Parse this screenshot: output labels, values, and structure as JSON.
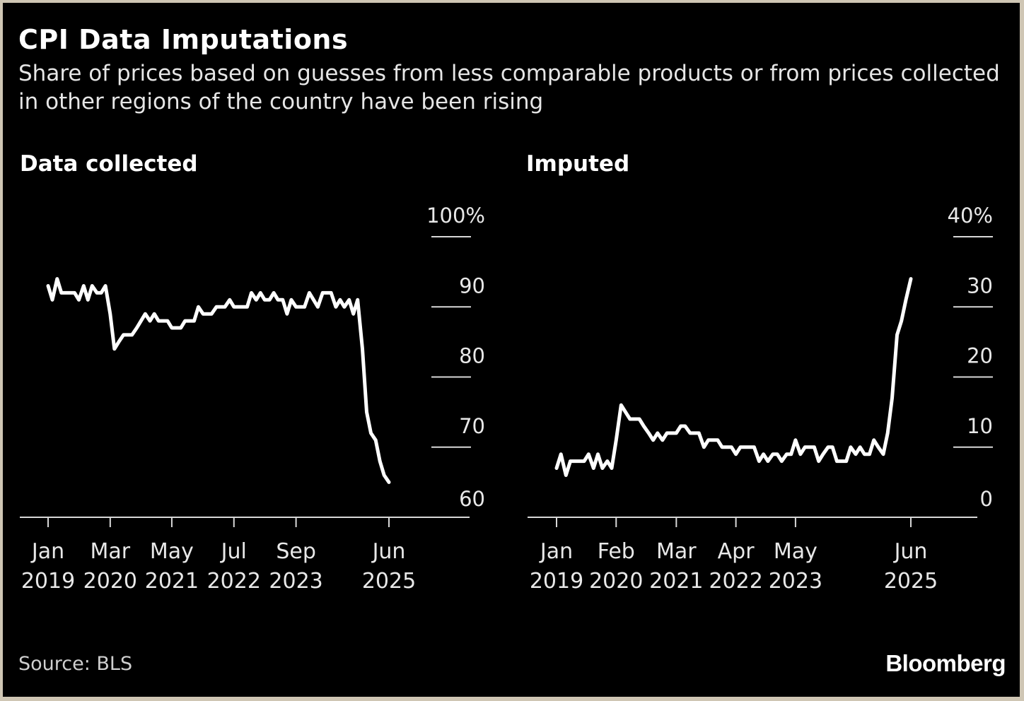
{
  "title": "CPI Data Imputations",
  "subtitle": "Share of prices based on guesses from less comparable products or from prices collected in other regions of the country have been rising",
  "footer": {
    "source": "Source: BLS",
    "brand": "Bloomberg"
  },
  "colors": {
    "background": "#000000",
    "line": "#ffffff",
    "text": "#ffffff"
  },
  "chart_data": [
    {
      "type": "line",
      "title": "Data collected",
      "ylim": [
        60,
        100
      ],
      "ytick_labels": [
        "100%",
        "90",
        "80",
        "70",
        "60"
      ],
      "yticks": [
        100,
        90,
        80,
        70,
        60
      ],
      "x_tick_labels": [
        {
          "month": "Jan",
          "year": "2019",
          "x": 2019.0
        },
        {
          "month": "Mar",
          "year": "2020",
          "x": 2020.17
        },
        {
          "month": "May",
          "year": "2021",
          "x": 2021.33
        },
        {
          "month": "Jul",
          "year": "2022",
          "x": 2022.5
        },
        {
          "month": "Sep",
          "year": "2023",
          "x": 2023.67
        },
        {
          "month": "Jun",
          "year": "2025",
          "x": 2025.42
        }
      ],
      "xlim": [
        2018.5,
        2026.0
      ],
      "x": [
        2019.0,
        2019.08,
        2019.17,
        2019.25,
        2019.33,
        2019.42,
        2019.5,
        2019.58,
        2019.67,
        2019.75,
        2019.83,
        2019.92,
        2020.0,
        2020.08,
        2020.17,
        2020.25,
        2020.33,
        2020.42,
        2020.5,
        2020.58,
        2020.67,
        2020.75,
        2020.83,
        2020.92,
        2021.0,
        2021.08,
        2021.17,
        2021.25,
        2021.33,
        2021.42,
        2021.5,
        2021.58,
        2021.67,
        2021.75,
        2021.83,
        2021.92,
        2022.0,
        2022.08,
        2022.17,
        2022.25,
        2022.33,
        2022.42,
        2022.5,
        2022.58,
        2022.67,
        2022.75,
        2022.83,
        2022.92,
        2023.0,
        2023.08,
        2023.17,
        2023.25,
        2023.33,
        2023.42,
        2023.5,
        2023.58,
        2023.67,
        2023.75,
        2023.83,
        2023.92,
        2024.0,
        2024.08,
        2024.17,
        2024.25,
        2024.33,
        2024.42,
        2024.5,
        2024.58,
        2024.67,
        2024.75,
        2024.83,
        2024.92,
        2025.0,
        2025.08,
        2025.17,
        2025.25,
        2025.33,
        2025.42
      ],
      "values": [
        93,
        91,
        94,
        92,
        92,
        92,
        92,
        91,
        93,
        91,
        93,
        92,
        92,
        93,
        89,
        84,
        85,
        86,
        86,
        86,
        87,
        88,
        89,
        88,
        89,
        88,
        88,
        88,
        87,
        87,
        87,
        88,
        88,
        88,
        90,
        89,
        89,
        89,
        90,
        90,
        90,
        91,
        90,
        90,
        90,
        90,
        92,
        91,
        92,
        91,
        91,
        92,
        91,
        91,
        89,
        91,
        90,
        90,
        90,
        92,
        91,
        90,
        92,
        92,
        92,
        90,
        91,
        90,
        91,
        89,
        91,
        84,
        75,
        72,
        71,
        68,
        66,
        65
      ]
    },
    {
      "type": "line",
      "title": "Imputed",
      "ylim": [
        0,
        40
      ],
      "ytick_labels": [
        "40%",
        "30",
        "20",
        "10",
        "0"
      ],
      "yticks": [
        40,
        30,
        20,
        10,
        0
      ],
      "x_tick_labels": [
        {
          "month": "Jan",
          "year": "2019",
          "x": 2019.0
        },
        {
          "month": "Feb",
          "year": "2020",
          "x": 2020.08
        },
        {
          "month": "Mar",
          "year": "2021",
          "x": 2021.17
        },
        {
          "month": "Apr",
          "year": "2022",
          "x": 2022.25
        },
        {
          "month": "May",
          "year": "2023",
          "x": 2023.33
        },
        {
          "month": "Jun",
          "year": "2025",
          "x": 2025.42
        }
      ],
      "xlim": [
        2018.5,
        2026.0
      ],
      "x": [
        2019.0,
        2019.08,
        2019.17,
        2019.25,
        2019.33,
        2019.42,
        2019.5,
        2019.58,
        2019.67,
        2019.75,
        2019.83,
        2019.92,
        2020.0,
        2020.08,
        2020.17,
        2020.25,
        2020.33,
        2020.42,
        2020.5,
        2020.58,
        2020.67,
        2020.75,
        2020.83,
        2020.92,
        2021.0,
        2021.08,
        2021.17,
        2021.25,
        2021.33,
        2021.42,
        2021.5,
        2021.58,
        2021.67,
        2021.75,
        2021.83,
        2021.92,
        2022.0,
        2022.08,
        2022.17,
        2022.25,
        2022.33,
        2022.42,
        2022.5,
        2022.58,
        2022.67,
        2022.75,
        2022.83,
        2022.92,
        2023.0,
        2023.08,
        2023.17,
        2023.25,
        2023.33,
        2023.42,
        2023.5,
        2023.58,
        2023.67,
        2023.75,
        2023.83,
        2023.92,
        2024.0,
        2024.08,
        2024.17,
        2024.25,
        2024.33,
        2024.42,
        2024.5,
        2024.58,
        2024.67,
        2024.75,
        2024.83,
        2024.92,
        2025.0,
        2025.08,
        2025.17,
        2025.25,
        2025.33,
        2025.42
      ],
      "values": [
        7,
        9,
        6,
        8,
        8,
        8,
        8,
        9,
        7,
        9,
        7,
        8,
        7,
        11,
        16,
        15,
        14,
        14,
        14,
        13,
        12,
        11,
        12,
        11,
        12,
        12,
        12,
        13,
        13,
        12,
        12,
        12,
        10,
        11,
        11,
        11,
        10,
        10,
        10,
        9,
        10,
        10,
        10,
        10,
        8,
        9,
        8,
        9,
        9,
        8,
        9,
        9,
        11,
        9,
        10,
        10,
        10,
        8,
        9,
        10,
        10,
        8,
        8,
        8,
        10,
        9,
        10,
        9,
        9,
        11,
        10,
        9,
        12,
        17,
        26,
        28,
        31,
        34
      ]
    }
  ]
}
